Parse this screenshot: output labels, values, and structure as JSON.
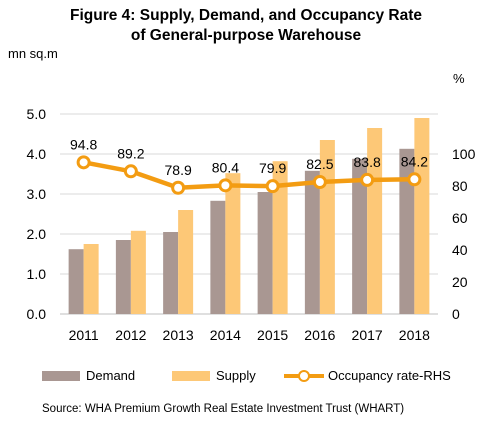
{
  "chart_data": {
    "type": "bar",
    "title": "Figure 4: Supply, Demand, and Occupancy Rate of General-purpose Warehouse",
    "title_lines": [
      "Figure 4: Supply, Demand, and Occupancy Rate",
      "of General-purpose Warehouse"
    ],
    "ylabel_left": "mn sq.m",
    "ylabel_right": "%",
    "categories": [
      "2011",
      "2012",
      "2013",
      "2014",
      "2015",
      "2016",
      "2017",
      "2018"
    ],
    "ylim_left": [
      0,
      5
    ],
    "yticks_left": [
      "0.0",
      "1.0",
      "2.0",
      "3.0",
      "4.0",
      "5.0"
    ],
    "ylim_right": [
      0,
      125
    ],
    "yticks_right": [
      "0",
      "20",
      "40",
      "60",
      "80",
      "100"
    ],
    "series": [
      {
        "name": "Demand",
        "type": "bar",
        "axis": "left",
        "color": "#A99792",
        "values": [
          1.62,
          1.85,
          2.05,
          2.83,
          3.05,
          3.58,
          3.88,
          4.13
        ]
      },
      {
        "name": "Supply",
        "type": "bar",
        "axis": "left",
        "color": "#FDC877",
        "values": [
          1.75,
          2.08,
          2.6,
          3.52,
          3.82,
          4.35,
          4.65,
          4.9
        ]
      },
      {
        "name": "Occupancy rate-RHS",
        "type": "line",
        "axis": "right",
        "color": "#F39C12",
        "values": [
          94.8,
          89.2,
          78.9,
          80.4,
          79.9,
          82.5,
          83.8,
          84.2
        ],
        "labels": [
          "94.8",
          "89.2",
          "78.9",
          "80.4",
          "79.9",
          "82.5",
          "83.8",
          "84.2"
        ]
      }
    ],
    "grid": true,
    "legend": "bottom"
  },
  "source": "Source: WHA Premium Growth Real Estate Investment Trust (WHART)"
}
